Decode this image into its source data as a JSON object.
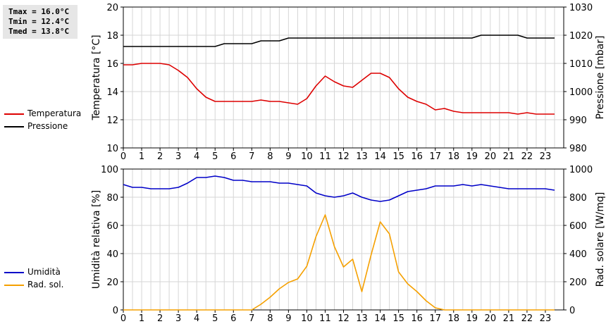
{
  "stats": {
    "tmax": "Tmax = 16.0°C",
    "tmin": "Tmin = 12.4°C",
    "tmed": "Tmed = 13.8°C"
  },
  "legend_top": [
    {
      "label": "Temperatura",
      "color": "#dd0000"
    },
    {
      "label": "Pressione",
      "color": "#000000"
    }
  ],
  "legend_bottom": [
    {
      "label": "Umidità",
      "color": "#0000c8"
    },
    {
      "label": "Rad. sol.",
      "color": "#f5a000"
    }
  ],
  "chart_data": [
    {
      "type": "line",
      "xlabel": "",
      "ylabel": "Temperatura [°C]",
      "y2label": "Pressione [mbar]",
      "xlim": [
        0,
        24
      ],
      "ylim": [
        10,
        20
      ],
      "y2lim": [
        980,
        1030
      ],
      "x_ticks": [
        "0",
        "1",
        "2",
        "3",
        "4",
        "5",
        "6",
        "7",
        "8",
        "9",
        "10",
        "11",
        "12",
        "13",
        "14",
        "15",
        "16",
        "17",
        "18",
        "19",
        "20",
        "21",
        "22",
        "23"
      ],
      "y_ticks": [
        "10",
        "12",
        "14",
        "16",
        "18",
        "20"
      ],
      "y2_ticks": [
        "980",
        "990",
        "1000",
        "1010",
        "1020",
        "1030"
      ],
      "grid": true,
      "series": [
        {
          "name": "Temperatura",
          "axis": "left",
          "color": "#dd0000",
          "points": [
            [
              0,
              15.9
            ],
            [
              0.5,
              15.9
            ],
            [
              1,
              16.0
            ],
            [
              1.5,
              16.0
            ],
            [
              2,
              16.0
            ],
            [
              2.5,
              15.9
            ],
            [
              3,
              15.5
            ],
            [
              3.5,
              15.0
            ],
            [
              4,
              14.2
            ],
            [
              4.5,
              13.6
            ],
            [
              5,
              13.3
            ],
            [
              5.5,
              13.3
            ],
            [
              6,
              13.3
            ],
            [
              6.5,
              13.3
            ],
            [
              7,
              13.3
            ],
            [
              7.5,
              13.4
            ],
            [
              8,
              13.3
            ],
            [
              8.5,
              13.3
            ],
            [
              9,
              13.2
            ],
            [
              9.5,
              13.1
            ],
            [
              10,
              13.5
            ],
            [
              10.5,
              14.4
            ],
            [
              11,
              15.1
            ],
            [
              11.5,
              14.7
            ],
            [
              12,
              14.4
            ],
            [
              12.5,
              14.3
            ],
            [
              13,
              14.8
            ],
            [
              13.5,
              15.3
            ],
            [
              14,
              15.3
            ],
            [
              14.5,
              15.0
            ],
            [
              15,
              14.2
            ],
            [
              15.5,
              13.6
            ],
            [
              16,
              13.3
            ],
            [
              16.5,
              13.1
            ],
            [
              17,
              12.7
            ],
            [
              17.5,
              12.8
            ],
            [
              18,
              12.6
            ],
            [
              18.5,
              12.5
            ],
            [
              19,
              12.5
            ],
            [
              19.5,
              12.5
            ],
            [
              20,
              12.5
            ],
            [
              20.5,
              12.5
            ],
            [
              21,
              12.5
            ],
            [
              21.5,
              12.4
            ],
            [
              22,
              12.5
            ],
            [
              22.5,
              12.4
            ],
            [
              23,
              12.4
            ],
            [
              23.5,
              12.4
            ]
          ]
        },
        {
          "name": "Pressione",
          "axis": "right",
          "color": "#000000",
          "points": [
            [
              0,
              1016
            ],
            [
              1,
              1016
            ],
            [
              2,
              1016
            ],
            [
              3,
              1016
            ],
            [
              4,
              1016
            ],
            [
              5,
              1016
            ],
            [
              5.5,
              1017
            ],
            [
              6.5,
              1017
            ],
            [
              7,
              1017
            ],
            [
              7.5,
              1018
            ],
            [
              8.5,
              1018
            ],
            [
              9,
              1019
            ],
            [
              10,
              1019
            ],
            [
              11,
              1019
            ],
            [
              12,
              1019
            ],
            [
              13,
              1019
            ],
            [
              14,
              1019
            ],
            [
              15,
              1019
            ],
            [
              16,
              1019
            ],
            [
              17,
              1019
            ],
            [
              18,
              1019
            ],
            [
              19,
              1019
            ],
            [
              19.5,
              1020
            ],
            [
              20,
              1020
            ],
            [
              21,
              1020
            ],
            [
              21.5,
              1020
            ],
            [
              22,
              1019
            ],
            [
              23,
              1019
            ],
            [
              23.5,
              1019
            ]
          ]
        }
      ]
    },
    {
      "type": "line",
      "xlabel": "",
      "ylabel": "Umidità relativa [%]",
      "y2label": "Rad. solare [W/mq]",
      "xlim": [
        0,
        24
      ],
      "ylim": [
        0,
        100
      ],
      "y2lim": [
        0,
        1000
      ],
      "x_ticks": [
        "0",
        "1",
        "2",
        "3",
        "4",
        "5",
        "6",
        "7",
        "8",
        "9",
        "10",
        "11",
        "12",
        "13",
        "14",
        "15",
        "16",
        "17",
        "18",
        "19",
        "20",
        "21",
        "22",
        "23"
      ],
      "y_ticks": [
        "0",
        "20",
        "40",
        "60",
        "80",
        "100"
      ],
      "y2_ticks": [
        "0",
        "200",
        "400",
        "600",
        "800",
        "1000"
      ],
      "grid": true,
      "series": [
        {
          "name": "Umidità",
          "axis": "left",
          "color": "#0000c8",
          "points": [
            [
              0,
              89
            ],
            [
              0.5,
              87
            ],
            [
              1,
              87
            ],
            [
              1.5,
              86
            ],
            [
              2,
              86
            ],
            [
              2.5,
              86
            ],
            [
              3,
              87
            ],
            [
              3.5,
              90
            ],
            [
              4,
              94
            ],
            [
              4.5,
              94
            ],
            [
              5,
              95
            ],
            [
              5.5,
              94
            ],
            [
              6,
              92
            ],
            [
              6.5,
              92
            ],
            [
              7,
              91
            ],
            [
              7.5,
              91
            ],
            [
              8,
              91
            ],
            [
              8.5,
              90
            ],
            [
              9,
              90
            ],
            [
              9.5,
              89
            ],
            [
              10,
              88
            ],
            [
              10.5,
              83
            ],
            [
              11,
              81
            ],
            [
              11.5,
              80
            ],
            [
              12,
              81
            ],
            [
              12.5,
              83
            ],
            [
              13,
              80
            ],
            [
              13.5,
              78
            ],
            [
              14,
              77
            ],
            [
              14.5,
              78
            ],
            [
              15,
              81
            ],
            [
              15.5,
              84
            ],
            [
              16,
              85
            ],
            [
              16.5,
              86
            ],
            [
              17,
              88
            ],
            [
              17.5,
              88
            ],
            [
              18,
              88
            ],
            [
              18.5,
              89
            ],
            [
              19,
              88
            ],
            [
              19.5,
              89
            ],
            [
              20,
              88
            ],
            [
              20.5,
              87
            ],
            [
              21,
              86
            ],
            [
              21.5,
              86
            ],
            [
              22,
              86
            ],
            [
              22.5,
              86
            ],
            [
              23,
              86
            ],
            [
              23.5,
              85
            ]
          ]
        },
        {
          "name": "Rad. sol.",
          "axis": "right",
          "color": "#f5a000",
          "points": [
            [
              0,
              0
            ],
            [
              1,
              0
            ],
            [
              2,
              0
            ],
            [
              3,
              0
            ],
            [
              4,
              0
            ],
            [
              5,
              0
            ],
            [
              6,
              0
            ],
            [
              7,
              0
            ],
            [
              7.5,
              40
            ],
            [
              8,
              90
            ],
            [
              8.5,
              150
            ],
            [
              9,
              195
            ],
            [
              9.5,
              220
            ],
            [
              10,
              310
            ],
            [
              10.5,
              520
            ],
            [
              11,
              675
            ],
            [
              11.5,
              450
            ],
            [
              12,
              305
            ],
            [
              12.5,
              360
            ],
            [
              13,
              130
            ],
            [
              13.5,
              390
            ],
            [
              14,
              625
            ],
            [
              14.5,
              540
            ],
            [
              15,
              270
            ],
            [
              15.5,
              185
            ],
            [
              16,
              130
            ],
            [
              16.5,
              65
            ],
            [
              17,
              15
            ],
            [
              17.5,
              0
            ],
            [
              18,
              0
            ],
            [
              19,
              0
            ],
            [
              20,
              0
            ],
            [
              21,
              0
            ],
            [
              22,
              0
            ],
            [
              23,
              0
            ],
            [
              23.5,
              0
            ]
          ]
        }
      ]
    }
  ]
}
